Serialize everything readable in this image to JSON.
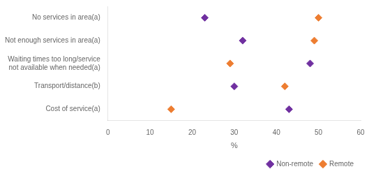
{
  "chart_data": {
    "type": "scatter",
    "orientation": "horizontal",
    "categories": [
      "No services in area(a)",
      "Not enough services in area(a)",
      "Waiting times too long/service\nnot available when needed(a)",
      "Transport/distance(b)",
      "Cost of service(a)"
    ],
    "series": [
      {
        "name": "Non-remote",
        "color": "#7030A0",
        "marker": "diamond",
        "values": [
          23,
          32,
          48,
          30,
          43
        ]
      },
      {
        "name": "Remote",
        "color": "#ED7D31",
        "marker": "diamond",
        "values": [
          50,
          49,
          29,
          42,
          15
        ]
      }
    ],
    "xlabel": "%",
    "xlim": [
      0,
      60
    ],
    "xticks": [
      0,
      10,
      20,
      30,
      40,
      50,
      60
    ],
    "grid": false,
    "legend": "lower right"
  }
}
